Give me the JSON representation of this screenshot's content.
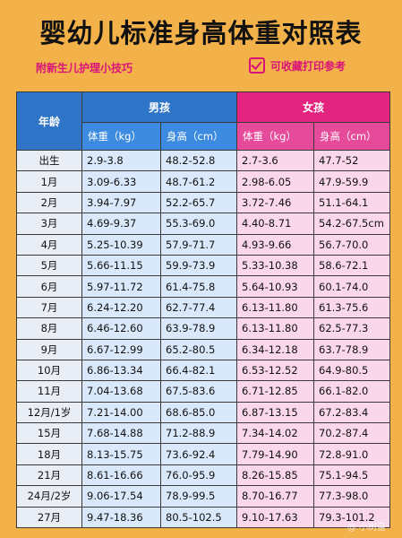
{
  "title": "婴幼儿标准身高体重对照表",
  "tip_left": "附新生儿护理小技巧",
  "tip_right": "可收藏打印参考",
  "header": {
    "age": "年龄",
    "boy": "男孩",
    "girl": "女孩",
    "weight": "体重（kg）",
    "height": "身高（cm）"
  },
  "rows": [
    {
      "age": "出生",
      "bw": "2.9-3.8",
      "bh": "48.2-52.8",
      "gw": "2.7-3.6",
      "gh": "47.7-52"
    },
    {
      "age": "1月",
      "bw": "3.09-6.33",
      "bh": "48.7-61.2",
      "gw": "2.98-6.05",
      "gh": "47.9-59.9"
    },
    {
      "age": "2月",
      "bw": "3.94-7.97",
      "bh": "52.2-65.7",
      "gw": "3.72-7.46",
      "gh": "51.1-64.1"
    },
    {
      "age": "3月",
      "bw": "4.69-9.37",
      "bh": "55.3-69.0",
      "gw": "4.40-8.71",
      "gh": "54.2-67.5cm"
    },
    {
      "age": "4月",
      "bw": "5.25-10.39",
      "bh": "57.9-71.7",
      "gw": "4.93-9.66",
      "gh": "56.7-70.0"
    },
    {
      "age": "5月",
      "bw": "5.66-11.15",
      "bh": "59.9-73.9",
      "gw": "5.33-10.38",
      "gh": "58.6-72.1"
    },
    {
      "age": "6月",
      "bw": "5.97-11.72",
      "bh": "61.4-75.8",
      "gw": "5.64-10.93",
      "gh": "60.1-74.0"
    },
    {
      "age": "7月",
      "bw": "6.24-12.20",
      "bh": "62.7-77.4",
      "gw": "6.13-11.80",
      "gh": "61.3-75.6"
    },
    {
      "age": "8月",
      "bw": "6.46-12.60",
      "bh": "63.9-78.9",
      "gw": "6.13-11.80",
      "gh": "62.5-77.3"
    },
    {
      "age": "9月",
      "bw": "6.67-12.99",
      "bh": "65.2-80.5",
      "gw": "6.34-12.18",
      "gh": "63.7-78.9"
    },
    {
      "age": "10月",
      "bw": "6.86-13.34",
      "bh": "66.4-82.1",
      "gw": "6.53-12.52",
      "gh": "64.9-80.5"
    },
    {
      "age": "11月",
      "bw": "7.04-13.68",
      "bh": "67.5-83.6",
      "gw": "6.71-12.85",
      "gh": "66.1-82.0"
    },
    {
      "age": "12月/1岁",
      "bw": "7.21-14.00",
      "bh": "68.6-85.0",
      "gw": "6.87-13.15",
      "gh": "67.2-83.4"
    },
    {
      "age": "15月",
      "bw": "7.68-14.88",
      "bh": "71.2-88.9",
      "gw": "7.34-14.02",
      "gh": "70.2-87.4"
    },
    {
      "age": "18月",
      "bw": "8.13-15.75",
      "bh": "73.6-92.4",
      "gw": "7.79-14.90",
      "gh": "72.8-91.0"
    },
    {
      "age": "21月",
      "bw": "8.61-16.66",
      "bh": "76.0-95.9",
      "gw": "8.26-15.85",
      "gh": "75.1-94.5"
    },
    {
      "age": "24月/2岁",
      "bw": "9.06-17.54",
      "bh": "78.9-99.5",
      "gw": "8.70-16.77",
      "gh": "77.3-98.0"
    },
    {
      "age": "27月",
      "bw": "9.47-18.36",
      "bh": "80.5-102.5",
      "gw": "9.10-17.63",
      "gh": "79.3-101.2"
    }
  ],
  "colors": {
    "background": "#f3b14a",
    "boy_header": "#2e75c8",
    "girl_header": "#e3247f",
    "boy_cell": "#d9e8fb",
    "girl_cell": "#fad7ea",
    "accent_pink": "#d8127a"
  }
}
